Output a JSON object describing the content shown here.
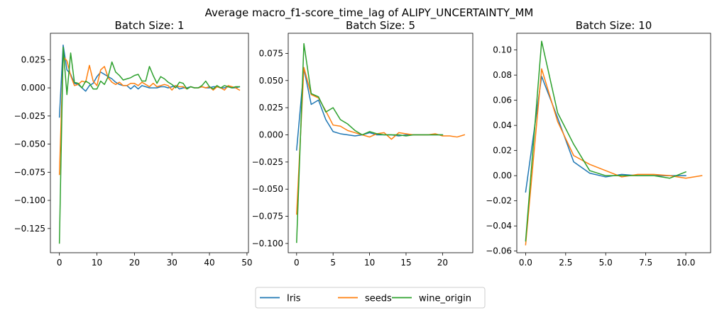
{
  "figure": {
    "suptitle": "Average macro_f1-score_time_lag of ALIPY_UNCERTAINTY_MM",
    "colors": {
      "Iris": "#1f77b4",
      "seeds": "#ff7f0e",
      "wine_origin": "#2ca02c"
    }
  },
  "legend": {
    "placement": "bottom-center",
    "entries": [
      "Iris",
      "seeds",
      "wine_origin"
    ]
  },
  "chart_data": [
    {
      "type": "line",
      "title": "Batch Size: 1",
      "xlabel": "",
      "ylabel": "",
      "xlim": [
        -2.4,
        50.4
      ],
      "ylim": [
        -0.1465,
        0.0485
      ],
      "xticks": [
        0,
        10,
        20,
        30,
        40,
        50
      ],
      "xtick_labels": [
        "0",
        "10",
        "20",
        "30",
        "40",
        "50"
      ],
      "yticks": [
        -0.125,
        -0.1,
        -0.075,
        -0.05,
        -0.025,
        0.0,
        0.025
      ],
      "ytick_labels": [
        "−0.125",
        "−0.100",
        "−0.075",
        "−0.050",
        "−0.025",
        "0.000",
        "0.025"
      ],
      "grid": false,
      "series": [
        {
          "name": "Iris",
          "x": [
            0,
            1,
            2,
            3,
            4,
            5,
            6,
            7,
            8,
            9,
            10,
            11,
            12,
            13,
            14,
            15,
            16,
            17,
            18,
            19,
            20,
            21,
            22,
            23,
            24,
            25,
            26,
            27,
            28,
            29,
            30,
            31,
            32,
            33,
            34,
            35,
            36,
            37,
            38,
            39,
            40,
            41,
            42,
            43,
            44,
            45,
            46,
            47,
            48
          ],
          "y": [
            -0.026,
            0.038,
            0.016,
            0.012,
            0.004,
            0.003,
            0.0,
            -0.003,
            0.002,
            0.004,
            0.01,
            0.014,
            0.012,
            0.01,
            0.008,
            0.005,
            0.003,
            0.002,
            0.002,
            -0.001,
            0.002,
            -0.001,
            0.002,
            0.001,
            0.0,
            0.0,
            0.0,
            0.001,
            0.001,
            0.0,
            0.001,
            0.002,
            -0.001,
            0.0,
            0.0,
            0.001,
            0.0,
            0.0,
            0.001,
            0.0,
            0.0,
            0.001,
            0.001,
            0.0,
            0.0,
            0.001,
            0.0,
            0.0,
            0.001
          ]
        },
        {
          "name": "seeds",
          "x": [
            0,
            1,
            2,
            3,
            4,
            5,
            6,
            7,
            8,
            9,
            10,
            11,
            12,
            13,
            14,
            15,
            16,
            17,
            18,
            19,
            20,
            21,
            22,
            23,
            24,
            25,
            26,
            27,
            28,
            29,
            30,
            31,
            32,
            33,
            34,
            35,
            36,
            37,
            38,
            39,
            40,
            41,
            42,
            43,
            44,
            45,
            46,
            47,
            48
          ],
          "y": [
            -0.077,
            0.028,
            0.024,
            0.011,
            0.002,
            0.003,
            0.006,
            0.005,
            0.02,
            0.006,
            0.002,
            0.016,
            0.019,
            0.009,
            0.005,
            0.003,
            0.005,
            0.002,
            0.002,
            0.004,
            0.004,
            0.002,
            0.005,
            0.003,
            0.001,
            0.004,
            0.001,
            0.002,
            0.003,
            0.002,
            -0.002,
            0.002,
            0.001,
            0.001,
            -0.001,
            0.001,
            0.0,
            0.0,
            0.001,
            0.0,
            0.001,
            -0.002,
            0.001,
            0.0,
            -0.002,
            0.002,
            0.001,
            0.0,
            -0.002
          ]
        },
        {
          "name": "wine_origin",
          "x": [
            0,
            1,
            2,
            3,
            4,
            5,
            6,
            7,
            8,
            9,
            10,
            11,
            12,
            13,
            14,
            15,
            16,
            17,
            18,
            19,
            20,
            21,
            22,
            23,
            24,
            25,
            26,
            27,
            28,
            29,
            30,
            31,
            32,
            33,
            34,
            35,
            36,
            37,
            38,
            39,
            40,
            41,
            42,
            43,
            44,
            45,
            46,
            47,
            48
          ],
          "y": [
            -0.138,
            0.036,
            -0.006,
            0.031,
            0.005,
            0.004,
            0.0,
            0.006,
            0.004,
            -0.001,
            -0.001,
            0.006,
            0.003,
            0.01,
            0.023,
            0.014,
            0.011,
            0.007,
            0.008,
            0.009,
            0.011,
            0.012,
            0.006,
            0.006,
            0.019,
            0.011,
            0.004,
            0.01,
            0.008,
            0.005,
            0.003,
            0.0,
            0.005,
            0.004,
            -0.001,
            0.001,
            0.0,
            0.0,
            0.002,
            0.006,
            0.001,
            -0.001,
            0.002,
            0.0,
            0.002,
            0.001,
            0.0,
            0.001,
            0.001
          ]
        }
      ]
    },
    {
      "type": "line",
      "title": "Batch Size: 5",
      "xlabel": "",
      "ylabel": "",
      "xlim": [
        -1.15,
        24.15
      ],
      "ylim": [
        -0.1085,
        0.0935
      ],
      "xticks": [
        0,
        5,
        10,
        15,
        20
      ],
      "xtick_labels": [
        "0",
        "5",
        "10",
        "15",
        "20"
      ],
      "yticks": [
        -0.1,
        -0.075,
        -0.05,
        -0.025,
        0.0,
        0.025,
        0.05,
        0.075
      ],
      "ytick_labels": [
        "−0.100",
        "−0.075",
        "−0.050",
        "−0.025",
        "0.000",
        "0.025",
        "0.050",
        "0.075"
      ],
      "grid": false,
      "series": [
        {
          "name": "Iris",
          "x": [
            0,
            1,
            2,
            3,
            4,
            5,
            6,
            7,
            8,
            9,
            10,
            11,
            12,
            13,
            14,
            15,
            16,
            17,
            18,
            19,
            20
          ],
          "y": [
            -0.014,
            0.061,
            0.028,
            0.032,
            0.014,
            0.003,
            0.001,
            0.0,
            -0.001,
            0.0,
            0.002,
            0.0,
            0.0,
            0.0,
            -0.001,
            0.0,
            0.0,
            0.0,
            0.0,
            0.0,
            0.0
          ]
        },
        {
          "name": "seeds",
          "x": [
            0,
            1,
            2,
            3,
            4,
            5,
            6,
            7,
            8,
            9,
            10,
            11,
            12,
            13,
            14,
            15,
            16,
            17,
            18,
            19,
            20,
            21,
            22,
            23
          ],
          "y": [
            -0.073,
            0.062,
            0.037,
            0.034,
            0.022,
            0.009,
            0.008,
            0.004,
            0.002,
            0.0,
            -0.002,
            0.001,
            0.002,
            -0.004,
            0.002,
            0.001,
            0.0,
            0.0,
            0.0,
            0.001,
            -0.001,
            -0.001,
            -0.002,
            0.0
          ]
        },
        {
          "name": "wine_origin",
          "x": [
            0,
            1,
            2,
            3,
            4,
            5,
            6,
            7,
            8,
            9,
            10,
            11,
            12,
            13,
            14,
            15,
            16,
            17,
            18,
            19,
            20
          ],
          "y": [
            -0.099,
            0.084,
            0.038,
            0.035,
            0.021,
            0.025,
            0.014,
            0.01,
            0.004,
            0.0,
            0.003,
            0.001,
            0.0,
            0.0,
            0.0,
            -0.001,
            0.0,
            0.0,
            0.0,
            0.0,
            0.0
          ]
        }
      ]
    },
    {
      "type": "line",
      "title": "Batch Size: 10",
      "xlabel": "",
      "ylabel": "",
      "xlim": [
        -0.55,
        11.55
      ],
      "ylim": [
        -0.0613,
        0.1133
      ],
      "xticks": [
        0,
        2.5,
        5,
        7.5,
        10
      ],
      "xtick_labels": [
        "0.0",
        "2.5",
        "5.0",
        "7.5",
        "10.0"
      ],
      "yticks": [
        -0.06,
        -0.04,
        -0.02,
        0.0,
        0.02,
        0.04,
        0.06,
        0.08,
        0.1
      ],
      "ytick_labels": [
        "−0.06",
        "−0.04",
        "−0.02",
        "0.00",
        "0.02",
        "0.04",
        "0.06",
        "0.08",
        "0.10"
      ],
      "grid": false,
      "series": [
        {
          "name": "Iris",
          "x": [
            0,
            1,
            2,
            3,
            4,
            5,
            6,
            7,
            8,
            9,
            10
          ],
          "y": [
            -0.013,
            0.079,
            0.046,
            0.011,
            0.002,
            -0.001,
            0.001,
            0.0,
            0.0,
            0.0,
            0.0
          ]
        },
        {
          "name": "seeds",
          "x": [
            0,
            1,
            2,
            3,
            4,
            5,
            6,
            7,
            8,
            9,
            10,
            11
          ],
          "y": [
            -0.055,
            0.085,
            0.043,
            0.016,
            0.009,
            0.004,
            -0.001,
            0.001,
            0.001,
            0.0,
            -0.002,
            0.0
          ]
        },
        {
          "name": "wine_origin",
          "x": [
            0,
            1,
            2,
            3,
            4,
            5,
            6,
            7,
            8,
            9,
            10
          ],
          "y": [
            -0.052,
            0.107,
            0.05,
            0.025,
            0.004,
            0.0,
            0.0,
            0.0,
            0.0,
            -0.002,
            0.003
          ]
        }
      ]
    }
  ]
}
